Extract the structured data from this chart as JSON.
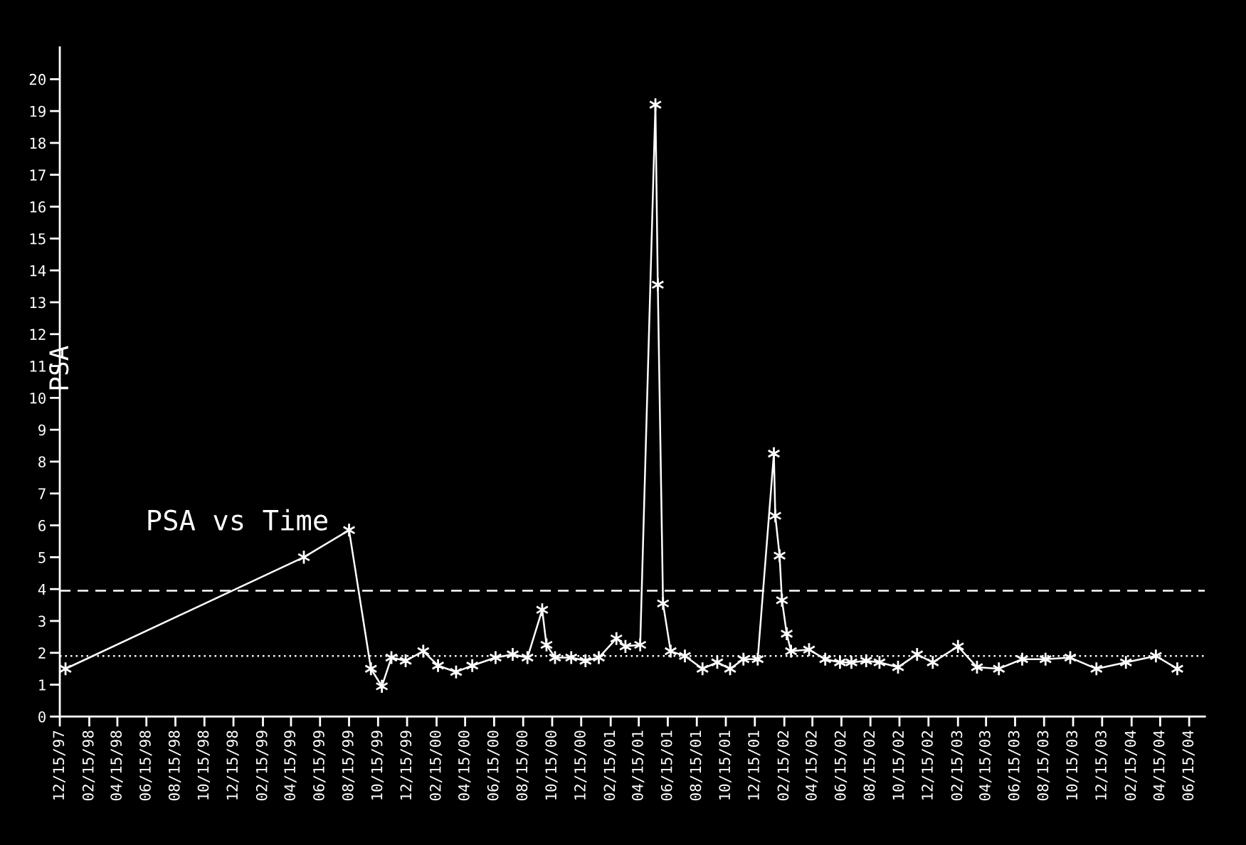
{
  "chart_data": {
    "type": "line",
    "title": "PSA vs Time",
    "ylabel": "PSA",
    "x": [
      "1997-12-27",
      "1999-05-12",
      "1999-08-15",
      "1999-09-30",
      "1999-10-23",
      "1999-11-12",
      "1999-12-12",
      "2000-01-18",
      "2000-02-18",
      "2000-03-27",
      "2000-04-30",
      "2000-06-18",
      "2000-07-24",
      "2000-08-24",
      "2000-09-24",
      "2000-10-03",
      "2000-10-21",
      "2000-11-24",
      "2000-12-24",
      "2001-01-21",
      "2001-02-27",
      "2001-03-18",
      "2001-04-18",
      "2001-05-20",
      "2001-05-25",
      "2001-06-05",
      "2001-06-21",
      "2001-07-21",
      "2001-08-27",
      "2001-09-27",
      "2001-10-24",
      "2001-11-21",
      "2001-12-21",
      "2002-01-24",
      "2002-01-27",
      "2002-02-05",
      "2002-02-10",
      "2002-02-20",
      "2002-03-01",
      "2002-04-08",
      "2002-05-12",
      "2002-06-12",
      "2002-07-06",
      "2002-08-06",
      "2002-09-03",
      "2002-10-12",
      "2002-11-21",
      "2002-12-24",
      "2003-02-15",
      "2003-03-27",
      "2003-05-12",
      "2003-06-30",
      "2003-08-18",
      "2003-10-09",
      "2003-12-03",
      "2004-02-03",
      "2004-04-06",
      "2004-05-21"
    ],
    "series": [
      {
        "color": "#ffffff",
        "values": [
          1.5,
          5.0,
          5.85,
          1.5,
          0.95,
          1.85,
          1.75,
          2.05,
          1.6,
          1.4,
          1.6,
          1.85,
          1.95,
          1.85,
          3.35,
          2.25,
          1.85,
          1.85,
          1.75,
          1.85,
          2.45,
          2.2,
          2.25,
          19.2,
          13.55,
          3.55,
          2.05,
          1.9,
          1.5,
          1.7,
          1.5,
          1.8,
          1.8,
          8.25,
          6.3,
          5.05,
          3.65,
          2.6,
          2.05,
          2.1,
          1.8,
          1.7,
          1.7,
          1.75,
          1.7,
          1.55,
          1.95,
          1.7,
          2.2,
          1.55,
          1.5,
          1.8,
          1.8,
          1.85,
          1.5,
          1.7,
          1.9,
          1.5
        ]
      }
    ],
    "marker": "cross",
    "line_style": "solid",
    "grid": false,
    "legend": false,
    "xlim": [
      "1997-12-15",
      "2004-07-18"
    ],
    "ylim": [
      0,
      21
    ],
    "yticks": [
      0,
      1,
      2,
      3,
      4,
      5,
      6,
      7,
      8,
      9,
      10,
      11,
      12,
      13,
      14,
      15,
      16,
      17,
      18,
      19,
      20
    ],
    "xticks": [
      {
        "value": "1997-12-15",
        "label": "12/15/97"
      },
      {
        "value": "1998-02-15",
        "label": "02/15/98"
      },
      {
        "value": "1998-04-15",
        "label": "04/15/98"
      },
      {
        "value": "1998-06-15",
        "label": "06/15/98"
      },
      {
        "value": "1998-08-15",
        "label": "08/15/98"
      },
      {
        "value": "1998-10-15",
        "label": "10/15/98"
      },
      {
        "value": "1998-12-15",
        "label": "12/15/98"
      },
      {
        "value": "1999-02-15",
        "label": "02/15/99"
      },
      {
        "value": "1999-04-15",
        "label": "04/15/99"
      },
      {
        "value": "1999-06-15",
        "label": "06/15/99"
      },
      {
        "value": "1999-08-15",
        "label": "08/15/99"
      },
      {
        "value": "1999-10-15",
        "label": "10/15/99"
      },
      {
        "value": "1999-12-15",
        "label": "12/15/99"
      },
      {
        "value": "2000-02-15",
        "label": "02/15/00"
      },
      {
        "value": "2000-04-15",
        "label": "04/15/00"
      },
      {
        "value": "2000-06-15",
        "label": "06/15/00"
      },
      {
        "value": "2000-08-15",
        "label": "08/15/00"
      },
      {
        "value": "2000-10-15",
        "label": "10/15/00"
      },
      {
        "value": "2000-12-15",
        "label": "12/15/00"
      },
      {
        "value": "2001-02-15",
        "label": "02/15/01"
      },
      {
        "value": "2001-04-15",
        "label": "04/15/01"
      },
      {
        "value": "2001-06-15",
        "label": "06/15/01"
      },
      {
        "value": "2001-08-15",
        "label": "08/15/01"
      },
      {
        "value": "2001-10-15",
        "label": "10/15/01"
      },
      {
        "value": "2001-12-15",
        "label": "12/15/01"
      },
      {
        "value": "2002-02-15",
        "label": "02/15/02"
      },
      {
        "value": "2002-04-15",
        "label": "04/15/02"
      },
      {
        "value": "2002-06-15",
        "label": "06/15/02"
      },
      {
        "value": "2002-08-15",
        "label": "08/15/02"
      },
      {
        "value": "2002-10-15",
        "label": "10/15/02"
      },
      {
        "value": "2002-12-15",
        "label": "12/15/02"
      },
      {
        "value": "2003-02-15",
        "label": "02/15/03"
      },
      {
        "value": "2003-04-15",
        "label": "04/15/03"
      },
      {
        "value": "2003-06-15",
        "label": "06/15/03"
      },
      {
        "value": "2003-08-15",
        "label": "08/15/03"
      },
      {
        "value": "2003-10-15",
        "label": "10/15/03"
      },
      {
        "value": "2003-12-15",
        "label": "12/15/03"
      },
      {
        "value": "2004-02-15",
        "label": "02/15/04"
      },
      {
        "value": "2004-04-15",
        "label": "04/15/04"
      },
      {
        "value": "2004-06-15",
        "label": "06/15/04"
      }
    ],
    "ref_lines": [
      {
        "axis": "y",
        "value": 3.95,
        "color": "#ffffff",
        "line_style": "dashed"
      },
      {
        "axis": "y",
        "value": 1.9,
        "color": "#ffffff",
        "line_style": "dotted"
      }
    ]
  }
}
